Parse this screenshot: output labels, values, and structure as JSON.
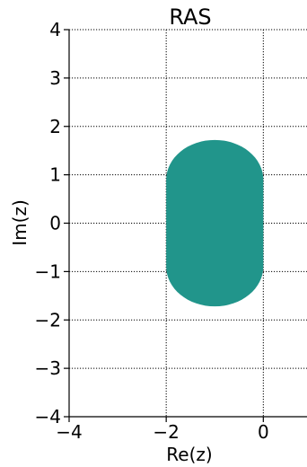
{
  "chart_data": {
    "type": "area",
    "title": "RAS",
    "xlabel": "Re(z)",
    "ylabel": "Im(z)",
    "xlim": [
      -4,
      0.9
    ],
    "ylim": [
      -4,
      4
    ],
    "xticks": [
      -4,
      -2,
      0
    ],
    "yticks": [
      -4,
      -3,
      -2,
      -1,
      0,
      1,
      2,
      3,
      4
    ],
    "xtick_labels": [
      "−4",
      "−2",
      "0"
    ],
    "ytick_labels": [
      "−4",
      "−3",
      "−2",
      "−1",
      "0",
      "1",
      "2",
      "3",
      "4"
    ],
    "grid": true,
    "grid_style": "dotted",
    "region_color": "#21958b",
    "region": {
      "shape": "stadium",
      "x_range": [
        -2,
        0
      ],
      "y_range": [
        -1.72,
        1.72
      ],
      "center_x": -1
    }
  }
}
